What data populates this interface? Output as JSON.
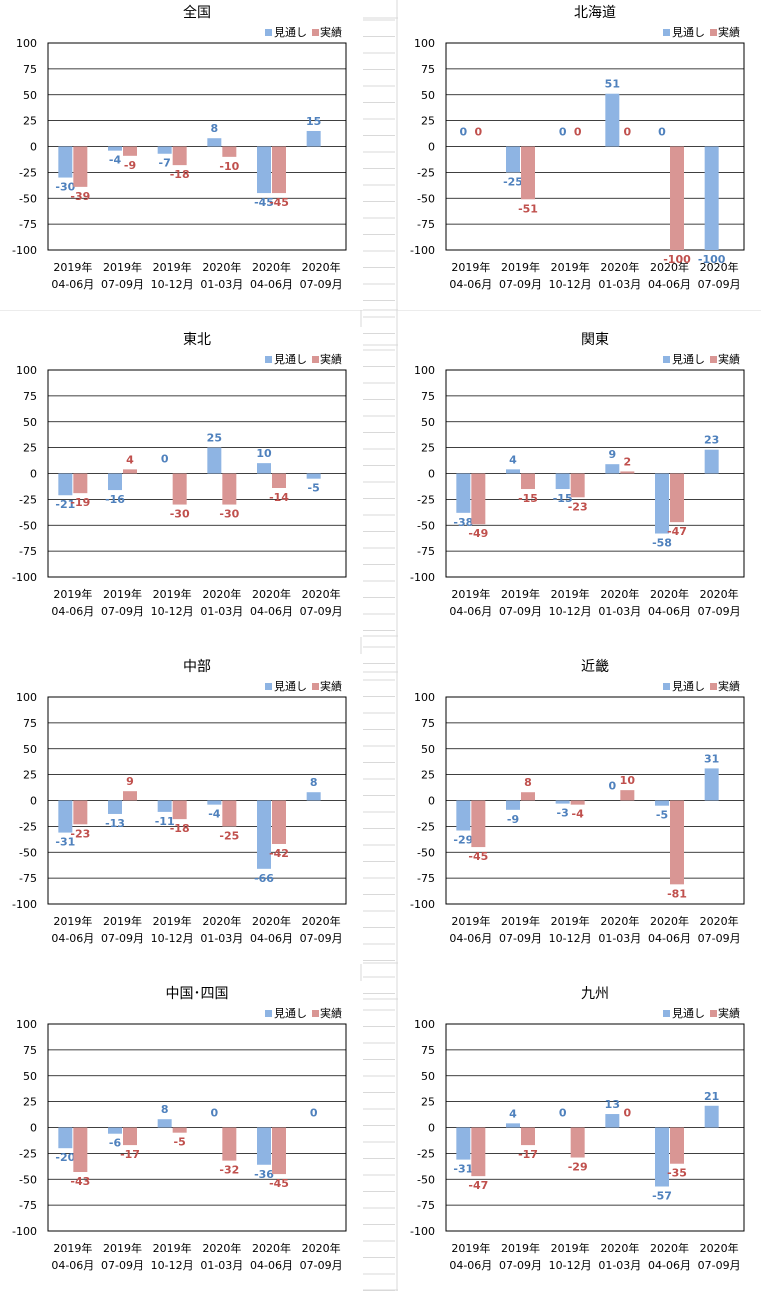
{
  "colors": {
    "forecast": "#8eb4e3",
    "actual": "#d99694",
    "forecast_label": "#4f81bd",
    "actual_label": "#c0504d",
    "grid": "#000000"
  },
  "legend": {
    "forecast": "見通し",
    "actual": "実績"
  },
  "chart_data": [
    {
      "type": "bar",
      "title": "全国",
      "categories": [
        [
          "2019年",
          "04-06月"
        ],
        [
          "2019年",
          "07-09月"
        ],
        [
          "2019年",
          "10-12月"
        ],
        [
          "2020年",
          "01-03月"
        ],
        [
          "2020年",
          "04-06月"
        ],
        [
          "2020年",
          "07-09月"
        ]
      ],
      "yticks": [
        "100",
        "75",
        "50",
        "25",
        "0",
        "-25",
        "-50",
        "-75",
        "-100"
      ],
      "ylim": [
        -100,
        100
      ],
      "series": [
        {
          "name": "見通し",
          "values": [
            -30,
            -4,
            -7,
            8,
            -45,
            15
          ]
        },
        {
          "name": "実績",
          "values": [
            -39,
            -9,
            -18,
            -10,
            -45,
            null
          ]
        }
      ]
    },
    {
      "type": "bar",
      "title": "北海道",
      "categories": [
        [
          "2019年",
          "04-06月"
        ],
        [
          "2019年",
          "07-09月"
        ],
        [
          "2019年",
          "10-12月"
        ],
        [
          "2020年",
          "01-03月"
        ],
        [
          "2020年",
          "04-06月"
        ],
        [
          "2020年",
          "07-09月"
        ]
      ],
      "yticks": [
        "100",
        "75",
        "50",
        "25",
        "0",
        "-25",
        "-50",
        "-75",
        "-100"
      ],
      "ylim": [
        -100,
        100
      ],
      "series": [
        {
          "name": "見通し",
          "values": [
            0,
            -25,
            0,
            51,
            0,
            -100
          ]
        },
        {
          "name": "実績",
          "values": [
            0,
            -51,
            0,
            0,
            -100,
            null
          ]
        }
      ]
    },
    {
      "type": "bar",
      "title": "東北",
      "categories": [
        [
          "2019年",
          "04-06月"
        ],
        [
          "2019年",
          "07-09月"
        ],
        [
          "2019年",
          "10-12月"
        ],
        [
          "2020年",
          "01-03月"
        ],
        [
          "2020年",
          "04-06月"
        ],
        [
          "2020年",
          "07-09月"
        ]
      ],
      "yticks": [
        "100",
        "75",
        "50",
        "25",
        "0",
        "-25",
        "-50",
        "-75",
        "-100"
      ],
      "ylim": [
        -100,
        100
      ],
      "series": [
        {
          "name": "見通し",
          "values": [
            -21,
            -16,
            0,
            25,
            10,
            -5
          ]
        },
        {
          "name": "実績",
          "values": [
            -19,
            4,
            -30,
            -30,
            -14,
            null
          ]
        }
      ]
    },
    {
      "type": "bar",
      "title": "関東",
      "categories": [
        [
          "2019年",
          "04-06月"
        ],
        [
          "2019年",
          "07-09月"
        ],
        [
          "2019年",
          "10-12月"
        ],
        [
          "2020年",
          "01-03月"
        ],
        [
          "2020年",
          "04-06月"
        ],
        [
          "2020年",
          "07-09月"
        ]
      ],
      "yticks": [
        "100",
        "75",
        "50",
        "25",
        "0",
        "-25",
        "-50",
        "-75",
        "-100"
      ],
      "ylim": [
        -100,
        100
      ],
      "series": [
        {
          "name": "見通し",
          "values": [
            -38,
            4,
            -15,
            9,
            -58,
            23
          ]
        },
        {
          "name": "実績",
          "values": [
            -49,
            -15,
            -23,
            2,
            -47,
            null
          ]
        }
      ]
    },
    {
      "type": "bar",
      "title": "中部",
      "categories": [
        [
          "2019年",
          "04-06月"
        ],
        [
          "2019年",
          "07-09月"
        ],
        [
          "2019年",
          "10-12月"
        ],
        [
          "2020年",
          "01-03月"
        ],
        [
          "2020年",
          "04-06月"
        ],
        [
          "2020年",
          "07-09月"
        ]
      ],
      "yticks": [
        "100",
        "75",
        "50",
        "25",
        "0",
        "-25",
        "-50",
        "-75",
        "-100"
      ],
      "ylim": [
        -100,
        100
      ],
      "series": [
        {
          "name": "見通し",
          "values": [
            -31,
            -13,
            -11,
            -4,
            -66,
            8
          ]
        },
        {
          "name": "実績",
          "values": [
            -23,
            9,
            -18,
            -25,
            -42,
            null
          ]
        }
      ]
    },
    {
      "type": "bar",
      "title": "近畿",
      "categories": [
        [
          "2019年",
          "04-06月"
        ],
        [
          "2019年",
          "07-09月"
        ],
        [
          "2019年",
          "10-12月"
        ],
        [
          "2020年",
          "01-03月"
        ],
        [
          "2020年",
          "04-06月"
        ],
        [
          "2020年",
          "07-09月"
        ]
      ],
      "yticks": [
        "100",
        "75",
        "50",
        "25",
        "0",
        "-25",
        "-50",
        "-75",
        "-100"
      ],
      "ylim": [
        -100,
        100
      ],
      "series": [
        {
          "name": "見通し",
          "values": [
            -29,
            -9,
            -3,
            0,
            -5,
            31
          ]
        },
        {
          "name": "実績",
          "values": [
            -45,
            8,
            -4,
            10,
            -81,
            null
          ]
        }
      ]
    },
    {
      "type": "bar",
      "title": "中国･四国",
      "categories": [
        [
          "2019年",
          "04-06月"
        ],
        [
          "2019年",
          "07-09月"
        ],
        [
          "2019年",
          "10-12月"
        ],
        [
          "2020年",
          "01-03月"
        ],
        [
          "2020年",
          "04-06月"
        ],
        [
          "2020年",
          "07-09月"
        ]
      ],
      "yticks": [
        "100",
        "75",
        "50",
        "25",
        "0",
        "-25",
        "-50",
        "-75",
        "-100"
      ],
      "ylim": [
        -100,
        100
      ],
      "series": [
        {
          "name": "見通し",
          "values": [
            -20,
            -6,
            8,
            0,
            -36,
            0
          ]
        },
        {
          "name": "実績",
          "values": [
            -43,
            -17,
            -5,
            -32,
            -45,
            null
          ]
        }
      ]
    },
    {
      "type": "bar",
      "title": "九州",
      "categories": [
        [
          "2019年",
          "04-06月"
        ],
        [
          "2019年",
          "07-09月"
        ],
        [
          "2019年",
          "10-12月"
        ],
        [
          "2020年",
          "01-03月"
        ],
        [
          "2020年",
          "04-06月"
        ],
        [
          "2020年",
          "07-09月"
        ]
      ],
      "yticks": [
        "100",
        "75",
        "50",
        "25",
        "0",
        "-25",
        "-50",
        "-75",
        "-100"
      ],
      "ylim": [
        -100,
        100
      ],
      "series": [
        {
          "name": "見通し",
          "values": [
            -31,
            4,
            0,
            13,
            -57,
            21
          ]
        },
        {
          "name": "実績",
          "values": [
            -47,
            -17,
            -29,
            0,
            -35,
            null
          ]
        }
      ]
    }
  ]
}
